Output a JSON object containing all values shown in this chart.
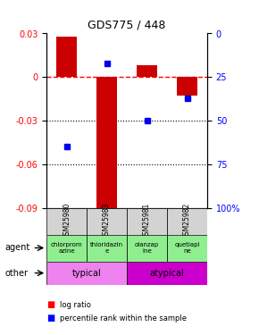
{
  "title": "GDS775 / 448",
  "samples": [
    "GSM25980",
    "GSM25983",
    "GSM25981",
    "GSM25982"
  ],
  "log_ratios": [
    0.028,
    -0.093,
    0.008,
    -0.013
  ],
  "percentile_ranks": [
    65,
    17,
    50,
    37
  ],
  "ylim_left": [
    -0.09,
    0.03
  ],
  "yticks_left": [
    0.03,
    0,
    -0.03,
    -0.06,
    -0.09
  ],
  "yticks_left_labels": [
    "0.03",
    "0",
    "-0.03",
    "-0.06",
    "-0.09"
  ],
  "yticks_right_labels": [
    "100%",
    "75",
    "50",
    "25",
    "0"
  ],
  "agents": [
    "chlorprom\nazine",
    "thioridazin\ne",
    "olanzap\nine",
    "quetiapi\nne"
  ],
  "typical_color": "#ee82ee",
  "atypical_color": "#cc00cc",
  "bar_color": "#cc0000",
  "dot_color": "#0000ee",
  "sample_bg_color": "#d3d3d3",
  "agent_bg_color": "#90ee90",
  "dashed_line_color": "#ff0000",
  "grid_color": "#000000"
}
